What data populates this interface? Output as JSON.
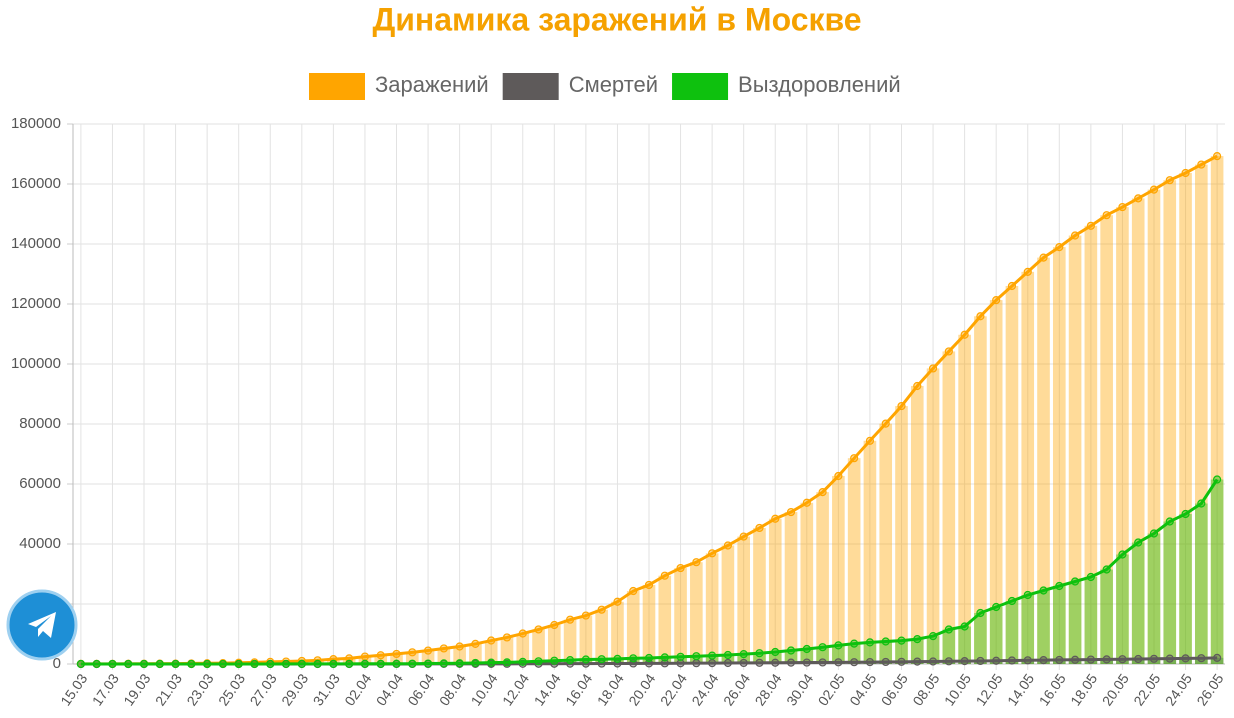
{
  "chart_data": {
    "type": "bar_line",
    "title": "Динамика заражений в Москве",
    "categories": [
      "15.03",
      null,
      "17.03",
      null,
      "19.03",
      null,
      "21.03",
      null,
      "23.03",
      null,
      "25.03",
      null,
      "27.03",
      null,
      "29.03",
      null,
      "31.03",
      null,
      "02.04",
      null,
      "04.04",
      null,
      "06.04",
      null,
      "08.04",
      null,
      "10.04",
      null,
      "12.04",
      null,
      "14.04",
      null,
      "16.04",
      null,
      "18.04",
      null,
      "20.04",
      null,
      "22.04",
      null,
      "24.04",
      null,
      "26.04",
      null,
      "28.04",
      null,
      "30.04",
      null,
      "02.05",
      null,
      "04.05",
      null,
      "06.05",
      null,
      "08.05",
      null,
      "10.05",
      null,
      "12.05",
      null,
      "14.05",
      null,
      "16.05",
      null,
      "18.05",
      null,
      "20.05",
      null,
      "22.05",
      null,
      "24.05",
      null,
      "26.05"
    ],
    "series": [
      {
        "name": "Заражений",
        "color": "#ffa500",
        "values": [
          35,
          53,
          56,
          86,
          98,
          131,
          137,
          191,
          262,
          290,
          410,
          546,
          703,
          817,
          1014,
          1226,
          1613,
          1880,
          2475,
          2923,
          3357,
          3893,
          4484,
          5181,
          5841,
          6698,
          7822,
          8852,
          10158,
          11513,
          13002,
          14776,
          16146,
          18105,
          20754,
          24324,
          26350,
          29433,
          31981,
          33940,
          36897,
          39509,
          42480,
          45351,
          48426,
          50646,
          53739,
          57300,
          62658,
          68606,
          74401,
          80115,
          85973,
          92676,
          98522,
          104189,
          109740,
          115909,
          121301,
          126004,
          130716,
          135464,
          138969,
          142824,
          146062,
          149607,
          152306,
          155212,
          158126,
          161275,
          163676,
          166473,
          169303
        ]
      },
      {
        "name": "Смертей",
        "color": "#5e5a5a",
        "values": [
          0,
          0,
          0,
          0,
          0,
          0,
          0,
          1,
          1,
          1,
          1,
          2,
          2,
          3,
          4,
          5,
          6,
          8,
          10,
          12,
          15,
          20,
          24,
          29,
          36,
          45,
          50,
          57,
          72,
          84,
          95,
          113,
          129,
          149,
          165,
          180,
          200,
          227,
          251,
          273,
          301,
          331,
          360,
          390,
          428,
          457,
          486,
          516,
          555,
          600,
          638,
          682,
          724,
          789,
          844,
          897,
          954,
          1018,
          1085,
          1160,
          1232,
          1298,
          1358,
          1411,
          1476,
          1537,
          1600,
          1664,
          1735,
          1798,
          1867,
          1935,
          2044
        ]
      },
      {
        "name": "Выздоровлений",
        "color": "#0ec10e",
        "values": [
          1,
          1,
          1,
          1,
          1,
          3,
          3,
          5,
          5,
          8,
          12,
          16,
          16,
          29,
          30,
          33,
          50,
          57,
          63,
          69,
          87,
          100,
          150,
          200,
          250,
          350,
          450,
          550,
          700,
          900,
          1100,
          1300,
          1500,
          1600,
          1700,
          1900,
          2000,
          2200,
          2400,
          2600,
          2800,
          3000,
          3300,
          3600,
          4000,
          4500,
          5000,
          5600,
          6200,
          6800,
          7200,
          7500,
          7800,
          8300,
          9300,
          11500,
          12500,
          17000,
          19000,
          21000,
          23000,
          24500,
          26000,
          27500,
          29000,
          31500,
          36500,
          40500,
          43500,
          47500,
          50000,
          53500,
          61500
        ]
      }
    ],
    "ylim": [
      0,
      180000
    ],
    "yticks": [
      0,
      20000,
      40000,
      60000,
      80000,
      100000,
      120000,
      140000,
      160000,
      180000
    ],
    "grid": true
  }
}
